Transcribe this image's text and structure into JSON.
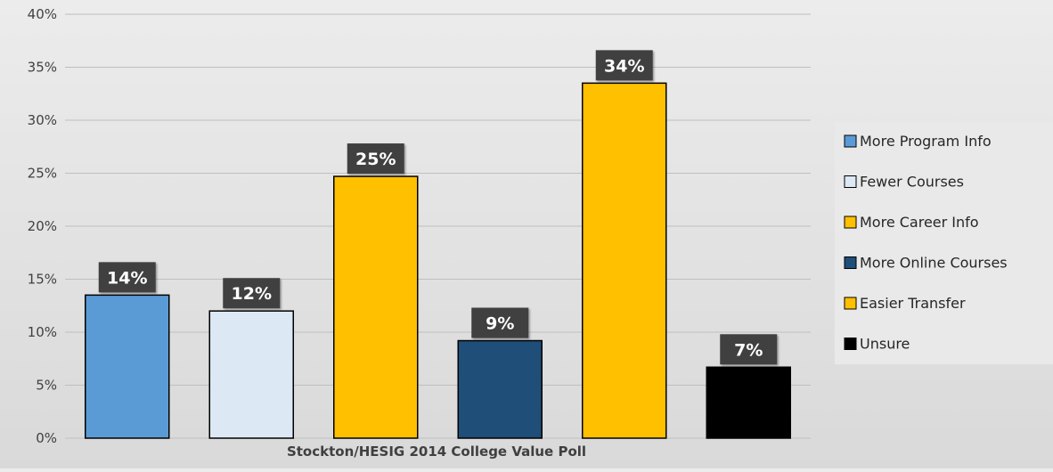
{
  "chart_data": {
    "type": "bar",
    "categories": [
      "More Program Info",
      "Fewer Courses",
      "More Career Info",
      "More Online Courses",
      "Easier Transfer",
      "Unsure"
    ],
    "values": [
      13.5,
      12.0,
      24.7,
      9.2,
      33.5,
      6.7
    ],
    "data_labels": [
      "14%",
      "12%",
      "25%",
      "9%",
      "34%",
      "7%"
    ],
    "colors": [
      "#5b9bd5",
      "#dde8f5",
      "#ffc000",
      "#1f4e79",
      "#ffc000",
      "#000000"
    ],
    "title": "",
    "xlabel": "Stockton/HESIG 2014 College Value Poll",
    "ylabel": "",
    "ylim": [
      0,
      40
    ],
    "yticks": [
      0,
      5,
      10,
      15,
      20,
      25,
      30,
      35,
      40
    ],
    "ytick_labels": [
      "0%",
      "5%",
      "10%",
      "15%",
      "20%",
      "25%",
      "30%",
      "35%",
      "40%"
    ],
    "grid": true,
    "legend": {
      "placement": "right",
      "entries": [
        "More Program Info",
        "Fewer Courses",
        "More Career Info",
        "More Online Courses",
        "Easier Transfer",
        "Unsure"
      ]
    },
    "colors_meta": {
      "label_bg": "#404040",
      "label_text": "#ffffff",
      "grid": "#bfbfbf",
      "axis_text": "#404040"
    }
  }
}
